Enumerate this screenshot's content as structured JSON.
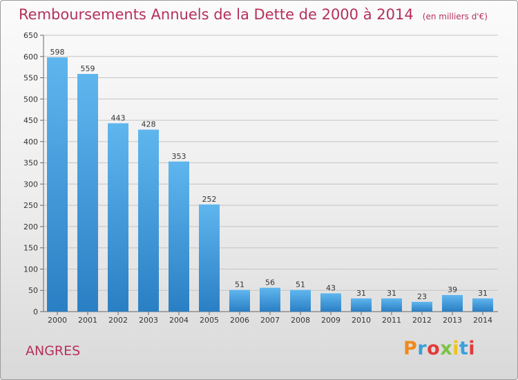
{
  "chart_data": {
    "type": "bar",
    "title": "Remboursements Annuels de la Dette de 2000 à 2014",
    "subtitle": "(en milliers d'€)",
    "xlabel": "",
    "ylabel": "",
    "categories": [
      "2000",
      "2001",
      "2002",
      "2003",
      "2004",
      "2005",
      "2006",
      "2007",
      "2008",
      "2009",
      "2010",
      "2011",
      "2012",
      "2013",
      "2014"
    ],
    "values": [
      598,
      559,
      443,
      428,
      353,
      252,
      51,
      56,
      51,
      43,
      31,
      31,
      23,
      39,
      31
    ],
    "ylim": [
      0,
      650
    ],
    "yticks": [
      0,
      50,
      100,
      150,
      200,
      250,
      300,
      350,
      400,
      450,
      500,
      550,
      600,
      650
    ],
    "grid": true,
    "bar_color": "#3a9ee0"
  },
  "commune": "ANGRES",
  "logo_text": "Proxiti"
}
